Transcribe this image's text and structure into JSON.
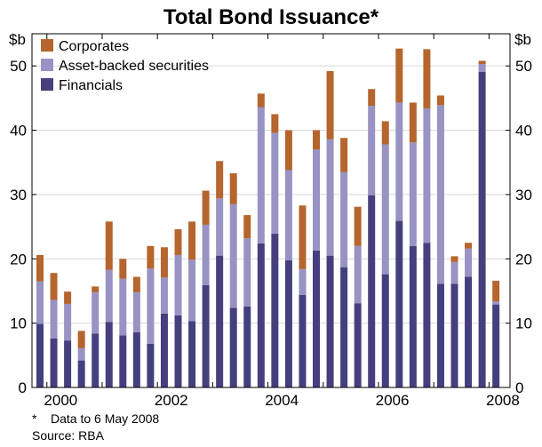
{
  "chart_data": {
    "type": "bar",
    "stacked": true,
    "title": "Total Bond Issuance*",
    "ylabel_left": "$b",
    "ylabel_right": "$b",
    "ylim": [
      0,
      55
    ],
    "yticks": [
      0,
      10,
      20,
      30,
      40,
      50
    ],
    "xticks": [
      "2000",
      "2002",
      "2004",
      "2006",
      "2008"
    ],
    "xtick_positions": [
      1.5,
      9.5,
      17.5,
      25.5,
      33.5
    ],
    "legend_position": "top-left",
    "periods": [
      "1999Q4",
      "2000Q1",
      "2000Q2",
      "2000Q3",
      "2000Q4",
      "2001Q1",
      "2001Q2",
      "2001Q3",
      "2001Q4",
      "2002Q1",
      "2002Q2",
      "2002Q3",
      "2002Q4",
      "2003Q1",
      "2003Q2",
      "2003Q3",
      "2003Q4",
      "2004Q1",
      "2004Q2",
      "2004Q3",
      "2004Q4",
      "2005Q1",
      "2005Q2",
      "2005Q3",
      "2005Q4",
      "2006Q1",
      "2006Q2",
      "2006Q3",
      "2006Q4",
      "2007Q1",
      "2007Q2",
      "2007Q3",
      "2007Q4",
      "2008Q1",
      "2008Q2"
    ],
    "series": [
      {
        "name": "Financials",
        "color": "#453f7e",
        "values": [
          9.9,
          7.6,
          7.3,
          4.2,
          8.4,
          10.2,
          8.1,
          8.6,
          6.8,
          11.5,
          11.2,
          10.3,
          15.9,
          20.5,
          12.4,
          12.6,
          22.4,
          23.9,
          19.8,
          14.4,
          21.3,
          20.5,
          18.7,
          13.1,
          29.9,
          17.6,
          25.9,
          22.0,
          22.5,
          16.1,
          16.1,
          17.2,
          49.1,
          12.9,
          0
        ]
      },
      {
        "name": "Asset-backed securities",
        "color": "#9893c3",
        "values": [
          6.6,
          6.0,
          5.7,
          1.9,
          6.4,
          8.1,
          8.8,
          6.2,
          11.7,
          5.6,
          9.4,
          9.6,
          9.4,
          8.9,
          16.1,
          10.6,
          21.2,
          15.7,
          14.0,
          4.0,
          15.7,
          18.1,
          14.8,
          8.9,
          13.9,
          20.2,
          18.4,
          16.1,
          20.9,
          27.8,
          3.4,
          4.4,
          1.2,
          0.5,
          0
        ]
      },
      {
        "name": "Corporates",
        "color": "#b5652d",
        "values": [
          4.1,
          4.2,
          1.9,
          2.7,
          0.9,
          7.5,
          3.1,
          2.4,
          3.5,
          4.7,
          4.0,
          5.9,
          5.3,
          5.8,
          4.8,
          3.6,
          2.1,
          2.9,
          6.2,
          9.9,
          3.0,
          10.6,
          5.3,
          6.1,
          2.6,
          3.6,
          8.4,
          6.2,
          9.2,
          1.5,
          0.9,
          0.9,
          0.5,
          3.2,
          0
        ]
      }
    ],
    "footnote": "*    Data to 6 May 2008",
    "source": "Source: RBA"
  }
}
